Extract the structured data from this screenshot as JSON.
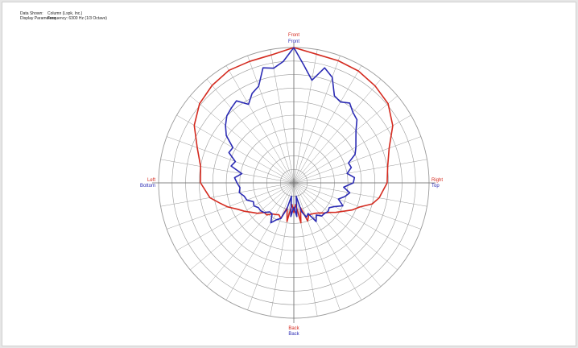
{
  "header": {
    "line1_label": "Data Shown:",
    "line1_value": "Column (Lspk, Inc.)",
    "line2_label": "Display Parameters:",
    "line2_value": "Frequency: 6300 Hz (1/3 Octave)"
  },
  "colors": {
    "series_a": "#d42a1f",
    "series_b": "#2b2bb4",
    "grid": "#9a9a9a",
    "background": "#ffffff"
  },
  "chart_data": {
    "type": "polar",
    "title": "",
    "grid": true,
    "radial_rings": 10,
    "angular_spokes_deg": 10,
    "angle_units": "degrees clockwise from Front",
    "radius_range": [
      0,
      10
    ],
    "direction_labels": {
      "top": {
        "series_a": "Front",
        "series_b": "Front"
      },
      "bottom": {
        "series_a": "Back",
        "series_b": "Back"
      },
      "left": {
        "series_a": "Left",
        "series_b": "Bottom"
      },
      "right": {
        "series_a": "Right",
        "series_b": "Top"
      }
    },
    "series": [
      {
        "color_key": "series_a",
        "points": [
          [
            0,
            10
          ],
          [
            10,
            9.65
          ],
          [
            20,
            9.6
          ],
          [
            30,
            9.55
          ],
          [
            40,
            9.35
          ],
          [
            50,
            9.1
          ],
          [
            60,
            8.45
          ],
          [
            70,
            7.5
          ],
          [
            80,
            7.05
          ],
          [
            90,
            6.9
          ],
          [
            100,
            6.4
          ],
          [
            105,
            6.0
          ],
          [
            110,
            5.2
          ],
          [
            115,
            4.75
          ],
          [
            120,
            4.2
          ],
          [
            125,
            3.8
          ],
          [
            130,
            3.4
          ],
          [
            135,
            3.15
          ],
          [
            140,
            2.9
          ],
          [
            145,
            2.75
          ],
          [
            150,
            2.65
          ],
          [
            155,
            2.6
          ],
          [
            160,
            3.0
          ],
          [
            165,
            1.9
          ],
          [
            170,
            3.0
          ],
          [
            175,
            1.6
          ],
          [
            180,
            2.2
          ],
          [
            185,
            1.6
          ],
          [
            190,
            2.9
          ],
          [
            195,
            1.9
          ],
          [
            200,
            2.8
          ],
          [
            205,
            2.6
          ],
          [
            210,
            2.7
          ],
          [
            215,
            2.8
          ],
          [
            220,
            3.1
          ],
          [
            225,
            3.1
          ],
          [
            230,
            3.5
          ],
          [
            235,
            3.8
          ],
          [
            240,
            4.2
          ],
          [
            245,
            4.6
          ],
          [
            250,
            5.2
          ],
          [
            255,
            5.7
          ],
          [
            260,
            6.3
          ],
          [
            270,
            6.9
          ],
          [
            280,
            7.0
          ],
          [
            290,
            7.6
          ],
          [
            300,
            8.5
          ],
          [
            310,
            9.1
          ],
          [
            320,
            9.4
          ],
          [
            330,
            9.6
          ],
          [
            340,
            9.55
          ],
          [
            350,
            9.6
          ]
        ]
      },
      {
        "color_key": "series_b",
        "points": [
          [
            0,
            10
          ],
          [
            5,
            8.7
          ],
          [
            10,
            7.7
          ],
          [
            15,
            8.8
          ],
          [
            20,
            8.3
          ],
          [
            25,
            7.1
          ],
          [
            30,
            6.9
          ],
          [
            35,
            7.2
          ],
          [
            40,
            6.8
          ],
          [
            45,
            6.6
          ],
          [
            50,
            6.0
          ],
          [
            55,
            5.6
          ],
          [
            60,
            5.3
          ],
          [
            65,
            5.0
          ],
          [
            70,
            4.3
          ],
          [
            75,
            4.4
          ],
          [
            80,
            4.0
          ],
          [
            85,
            4.5
          ],
          [
            90,
            4.4
          ],
          [
            95,
            3.7
          ],
          [
            100,
            4.2
          ],
          [
            105,
            3.9
          ],
          [
            110,
            3.5
          ],
          [
            115,
            4.0
          ],
          [
            120,
            3.5
          ],
          [
            125,
            3.2
          ],
          [
            130,
            3.3
          ],
          [
            135,
            3.2
          ],
          [
            140,
            3.2
          ],
          [
            145,
            2.9
          ],
          [
            150,
            3.3
          ],
          [
            155,
            2.5
          ],
          [
            160,
            2.7
          ],
          [
            165,
            2.2
          ],
          [
            170,
            1.0
          ],
          [
            175,
            2.5
          ],
          [
            180,
            1.8
          ],
          [
            185,
            2.5
          ],
          [
            190,
            1.0
          ],
          [
            195,
            2.0
          ],
          [
            200,
            2.8
          ],
          [
            205,
            3.0
          ],
          [
            210,
            3.4
          ],
          [
            215,
            2.8
          ],
          [
            220,
            2.8
          ],
          [
            225,
            3.1
          ],
          [
            230,
            3.2
          ],
          [
            235,
            3.2
          ],
          [
            240,
            3.4
          ],
          [
            245,
            3.3
          ],
          [
            250,
            3.7
          ],
          [
            255,
            3.8
          ],
          [
            260,
            4.1
          ],
          [
            265,
            4.0
          ],
          [
            270,
            4.2
          ],
          [
            275,
            4.4
          ],
          [
            280,
            3.9
          ],
          [
            285,
            4.8
          ],
          [
            290,
            4.6
          ],
          [
            295,
            5.3
          ],
          [
            300,
            5.2
          ],
          [
            305,
            6.1
          ],
          [
            310,
            6.6
          ],
          [
            315,
            7.0
          ],
          [
            320,
            7.2
          ],
          [
            325,
            7.4
          ],
          [
            330,
            6.7
          ],
          [
            335,
            7.3
          ],
          [
            340,
            7.6
          ],
          [
            345,
            8.8
          ],
          [
            350,
            8.6
          ],
          [
            355,
            9.0
          ]
        ]
      }
    ]
  }
}
